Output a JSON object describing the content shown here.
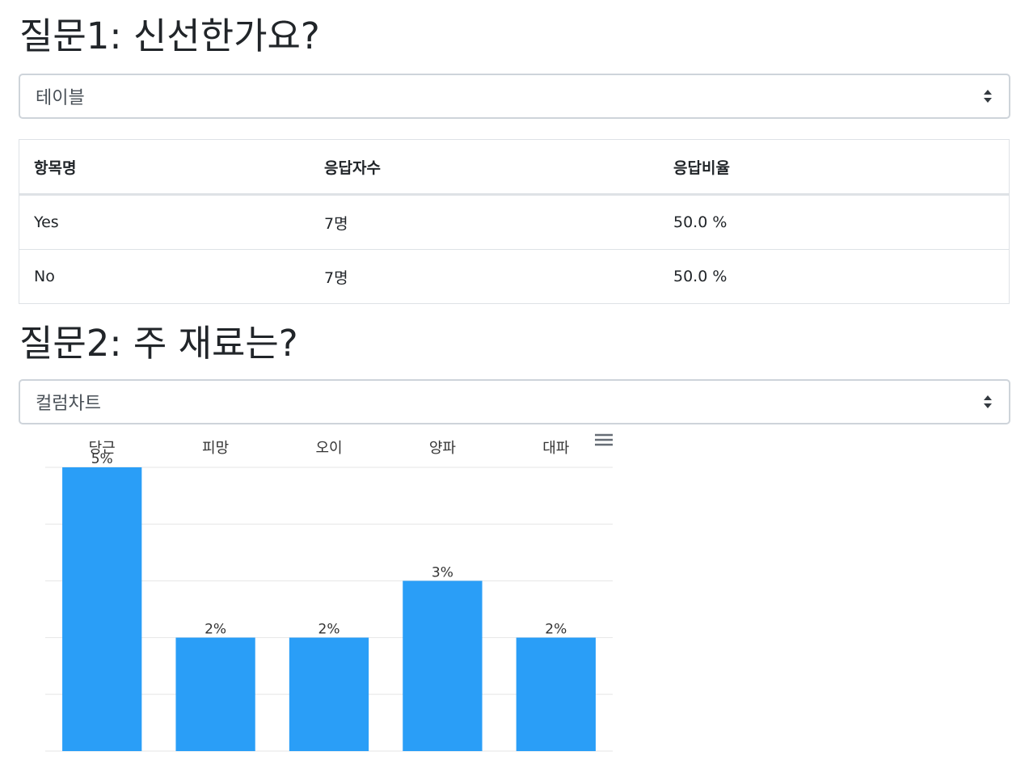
{
  "question1": {
    "title": "질문1: 신선한가요?",
    "view_select": {
      "selected": "테이블"
    },
    "table": {
      "headers": [
        "항목명",
        "응답자수",
        "응답비율"
      ],
      "rows": [
        [
          "Yes",
          "7명",
          "50.0 %"
        ],
        [
          "No",
          "7명",
          "50.0 %"
        ]
      ]
    }
  },
  "question2": {
    "title": "질문2: 주 재료는?",
    "view_select": {
      "selected": "컬럼차트"
    },
    "chart_menu_icon": "hamburger-menu-icon"
  },
  "colors": {
    "bar": "#2a9ef7",
    "grid": "#e6e6e6",
    "menu_icon": "#666d75"
  },
  "chart_data": {
    "type": "bar",
    "categories": [
      "당근",
      "피망",
      "오이",
      "양파",
      "대파"
    ],
    "values": [
      5,
      2,
      2,
      3,
      2
    ],
    "data_labels": [
      "5%",
      "2%",
      "2%",
      "3%",
      "2%"
    ],
    "unit": "%",
    "ylim": [
      0,
      5
    ],
    "grid": true,
    "category_axis_position": "top"
  }
}
